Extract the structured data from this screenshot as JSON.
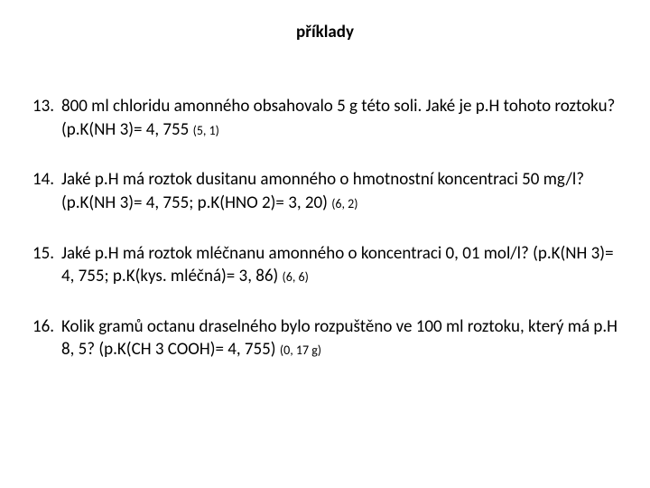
{
  "title_fontsize": 19,
  "body_fontsize": 19,
  "answer_fontsize": 14,
  "background_color": "#ffffff",
  "text_color": "#000000",
  "font_family": "Calibri, Arial, sans-serif",
  "title": "příklady",
  "items": [
    {
      "number": "13.",
      "body": "800 ml chloridu amonného obsahovalo 5 g této soli. Jaké je p.H tohoto roztoku? (p.K(NH 3)= 4, 755 ",
      "answer": "(5, 1)"
    },
    {
      "number": "14.",
      "body": "Jaké p.H má roztok dusitanu amonného o hmotnostní koncentraci 50 mg/l? (p.K(NH 3)= 4, 755; p.K(HNO 2)= 3, 20) ",
      "answer": "(6, 2)"
    },
    {
      "number": "15.",
      "body": "Jaké p.H má roztok mléčnanu amonného o koncentraci 0, 01 mol/l? (p.K(NH 3)= 4, 755; p.K(kys. mléčná)= 3, 86) ",
      "answer": "(6, 6)"
    },
    {
      "number": "16.",
      "body": "Kolik gramů octanu draselného bylo rozpuštěno ve 100 ml roztoku, který má p.H 8, 5? (p.K(CH 3 COOH)= 4, 755) ",
      "answer": "(0, 17 g)"
    }
  ]
}
